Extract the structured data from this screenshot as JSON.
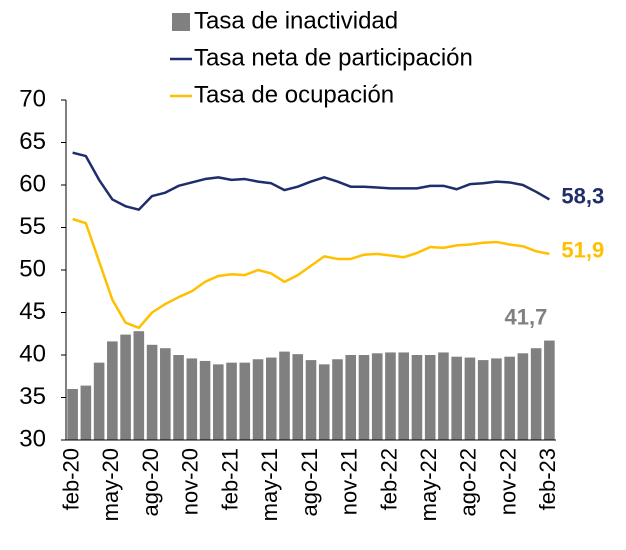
{
  "chart_data": {
    "type": "bar",
    "categories": [
      "feb-20",
      null,
      null,
      "may-20",
      null,
      null,
      "ago-20",
      null,
      null,
      "nov-20",
      null,
      null,
      "feb-21",
      null,
      null,
      "may-21",
      null,
      null,
      "ago-21",
      null,
      null,
      "nov-21",
      null,
      null,
      "feb-22",
      null,
      null,
      "may-22",
      null,
      null,
      "ago-22",
      null,
      null,
      "nov-22",
      null,
      null,
      "feb-23"
    ],
    "series": [
      {
        "name": "Tasa de inactividad",
        "type": "bar",
        "color": "#808080",
        "values": [
          36.0,
          36.4,
          39.1,
          41.6,
          42.4,
          42.8,
          41.2,
          40.8,
          40.0,
          39.6,
          39.3,
          38.9,
          39.1,
          39.1,
          39.5,
          39.7,
          40.4,
          40.1,
          39.4,
          38.9,
          39.5,
          40.0,
          40.0,
          40.2,
          40.3,
          40.3,
          40.0,
          40.0,
          40.3,
          39.8,
          39.7,
          39.4,
          39.6,
          39.8,
          40.2,
          40.8,
          41.7
        ],
        "value_labels": [
          null,
          null,
          null,
          null,
          null,
          null,
          null,
          null,
          null,
          null,
          null,
          null,
          null,
          null,
          null,
          null,
          null,
          null,
          null,
          null,
          null,
          null,
          null,
          null,
          null,
          null,
          null,
          null,
          null,
          null,
          null,
          null,
          null,
          null,
          null,
          null,
          "41,7"
        ]
      },
      {
        "name": "Tasa neta de participación",
        "type": "line",
        "color": "#1f2d6b",
        "values": [
          63.8,
          63.4,
          60.6,
          58.3,
          57.5,
          57.1,
          58.7,
          59.1,
          59.9,
          60.3,
          60.7,
          60.9,
          60.6,
          60.7,
          60.4,
          60.2,
          59.4,
          59.8,
          60.4,
          60.9,
          60.4,
          59.8,
          59.8,
          59.7,
          59.6,
          59.6,
          59.6,
          59.9,
          59.9,
          59.5,
          60.1,
          60.2,
          60.4,
          60.3,
          60.0,
          59.2,
          58.3
        ],
        "value_labels": [
          null,
          null,
          null,
          null,
          null,
          null,
          null,
          null,
          null,
          null,
          null,
          null,
          null,
          null,
          null,
          null,
          null,
          null,
          null,
          null,
          null,
          null,
          null,
          null,
          null,
          null,
          null,
          null,
          null,
          null,
          null,
          null,
          null,
          null,
          null,
          null,
          "58,3"
        ]
      },
      {
        "name": "Tasa de ocupación",
        "type": "line",
        "color": "#ffc000",
        "values": [
          56.0,
          55.5,
          51.0,
          46.5,
          43.8,
          43.2,
          45.0,
          46.0,
          46.8,
          47.5,
          48.6,
          49.3,
          49.5,
          49.4,
          50.0,
          49.6,
          48.6,
          49.4,
          50.5,
          51.6,
          51.3,
          51.3,
          51.8,
          51.9,
          51.7,
          51.5,
          52.0,
          52.7,
          52.6,
          52.9,
          53.0,
          53.2,
          53.3,
          53.0,
          52.8,
          52.2,
          51.9
        ],
        "value_labels": [
          null,
          null,
          null,
          null,
          null,
          null,
          null,
          null,
          null,
          null,
          null,
          null,
          null,
          null,
          null,
          null,
          null,
          null,
          null,
          null,
          null,
          null,
          null,
          null,
          null,
          null,
          null,
          null,
          null,
          null,
          null,
          null,
          null,
          null,
          null,
          null,
          "51,9"
        ]
      }
    ],
    "ylim": [
      30,
      70
    ],
    "yticks": [
      30,
      35,
      40,
      45,
      50,
      55,
      60,
      65,
      70
    ],
    "grid": false
  }
}
